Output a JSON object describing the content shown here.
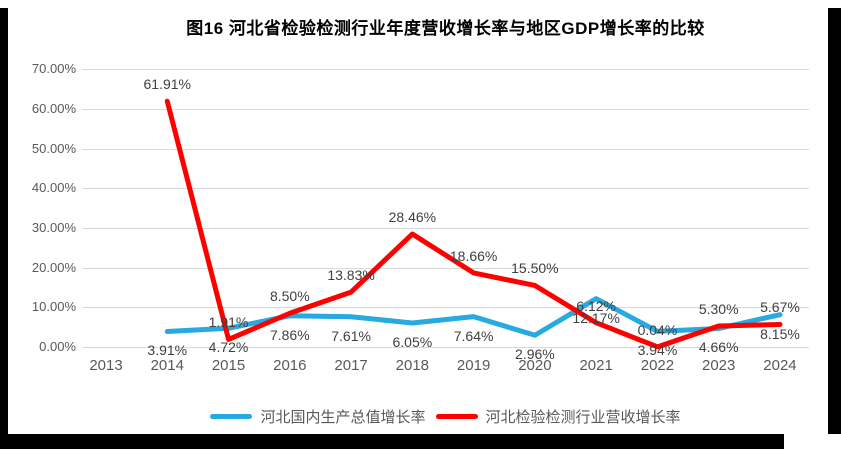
{
  "frame": {
    "border_color": "#000000",
    "page_color": "#ffffff"
  },
  "chart_data": {
    "type": "line",
    "title": "图16 河北省检验检测行业年度营收增长率与地区GDP增长率的比较",
    "categories": [
      "2013",
      "2014",
      "2015",
      "2016",
      "2017",
      "2018",
      "2019",
      "2020",
      "2021",
      "2022",
      "2023",
      "2024"
    ],
    "series": [
      {
        "name": "河北国内生产总值增长率",
        "color": "#27A9E1",
        "label_position": "below",
        "values": [
          null,
          3.91,
          4.72,
          7.86,
          7.61,
          6.05,
          7.64,
          2.96,
          12.17,
          3.94,
          4.66,
          8.15
        ],
        "labels": [
          "",
          "3.91%",
          "4.72%",
          "7.86%",
          "7.61%",
          "6.05%",
          "7.64%",
          "2.96%",
          "12.17%",
          "3.94%",
          "4.66%",
          "8.15%"
        ]
      },
      {
        "name": "河北检验检测行业营收增长率",
        "color": "#FF0000",
        "label_position": "above",
        "values": [
          null,
          61.91,
          1.91,
          8.5,
          13.83,
          28.46,
          18.66,
          15.5,
          6.12,
          0.04,
          5.3,
          5.67
        ],
        "labels": [
          "",
          "61.91%",
          "1.91%",
          "8.50%",
          "13.83%",
          "28.46%",
          "18.66%",
          "15.50%",
          "6.12%",
          "0.04%",
          "5.30%",
          "5.67%"
        ]
      }
    ],
    "ylim": [
      0,
      70
    ],
    "yticks": [
      "0.00%",
      "10.00%",
      "20.00%",
      "30.00%",
      "40.00%",
      "50.00%",
      "60.00%",
      "70.00%"
    ],
    "grid": true,
    "gridline_color": "#D9D9D9",
    "tick_text_color": "#595959",
    "data_label_color": "#404040",
    "legend_position": "bottom"
  },
  "legend": {
    "items": [
      {
        "label": "河北国内生产总值增长率",
        "color": "#27A9E1"
      },
      {
        "label": "河北检验检测行业营收增长率",
        "color": "#FF0000"
      }
    ]
  }
}
